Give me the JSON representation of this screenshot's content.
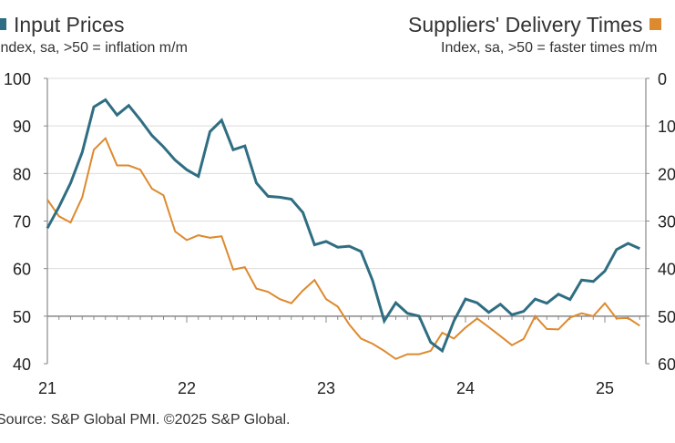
{
  "header": {
    "left_title": "Input Prices",
    "left_subtitle": "Index, sa, >50 = inflation m/m",
    "right_title": "Suppliers' Delivery Times",
    "right_subtitle": "Index, sa, >50 = faster times m/m"
  },
  "footer": {
    "source": "Source: S&P Global PMI. ©2025 S&P Global."
  },
  "chart_data": {
    "type": "line",
    "x_start": "2021-01",
    "x_end": "2025-04",
    "frequency": "monthly",
    "x_tick_labels": [
      "21",
      "22",
      "23",
      "24",
      "25"
    ],
    "y_left": {
      "range": [
        40,
        100
      ],
      "ticks": [
        "40",
        "50",
        "60",
        "70",
        "80",
        "90",
        "100"
      ]
    },
    "y_right": {
      "range": [
        0,
        60
      ],
      "inverted": true,
      "ticks": [
        "0",
        "10",
        "20",
        "30",
        "40",
        "50",
        "60"
      ]
    },
    "grid": true,
    "reference_line": 50,
    "series": [
      {
        "name": "Input Prices",
        "axis": "left",
        "color": "#2f6e82",
        "values": [
          68.5,
          73,
          78,
          84.5,
          94,
          95.5,
          92.3,
          94.3,
          91.3,
          88,
          85.6,
          82.8,
          80.8,
          79.4,
          88.8,
          91.2,
          85,
          85.8,
          78,
          75.2,
          75,
          74.6,
          71.8,
          65,
          65.7,
          64.5,
          64.7,
          63.6,
          57.5,
          49,
          52.8,
          50.6,
          50,
          44.5,
          42.7,
          49,
          53.6,
          52.8,
          50.8,
          52.5,
          50.3,
          51,
          53.6,
          52.7,
          54.6,
          53.5,
          57.6,
          57.3,
          59.5,
          64,
          65.3,
          64.2
        ]
      },
      {
        "name": "Suppliers' Delivery Times",
        "axis": "right",
        "color": "#dd8a2e",
        "values": [
          25.5,
          29,
          30.3,
          25,
          15,
          12.6,
          18.3,
          18.3,
          19.2,
          23.2,
          24.6,
          32.2,
          34,
          33,
          33.5,
          33.2,
          40.2,
          39.7,
          44.2,
          44.9,
          46.4,
          47.3,
          44.6,
          42.4,
          46.4,
          48,
          51.8,
          54.7,
          55.8,
          57.3,
          59,
          58,
          58,
          57.3,
          53.5,
          54.7,
          52.4,
          50.5,
          52.3,
          54.2,
          56.1,
          54.8,
          50,
          52.7,
          52.8,
          50.3,
          49.4,
          50,
          47.3,
          50.5,
          50.4,
          52
        ]
      }
    ]
  }
}
